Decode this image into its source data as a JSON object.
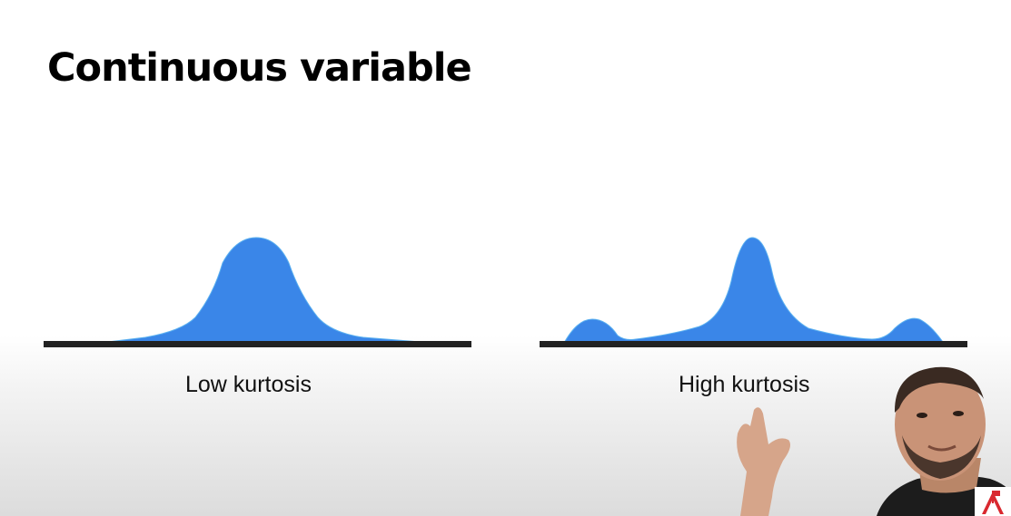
{
  "slide": {
    "title": "Continuous variable",
    "panels": [
      {
        "caption": "Low kurtosis",
        "shape": "single broad peak"
      },
      {
        "caption": "High kurtosis",
        "shape": "sharp central peak with heavy tails and small side bumps"
      }
    ]
  },
  "colors": {
    "curve_fill": "#3a86e8",
    "baseline": "#222222",
    "title_text": "#000000",
    "logo_red": "#d9282f"
  }
}
